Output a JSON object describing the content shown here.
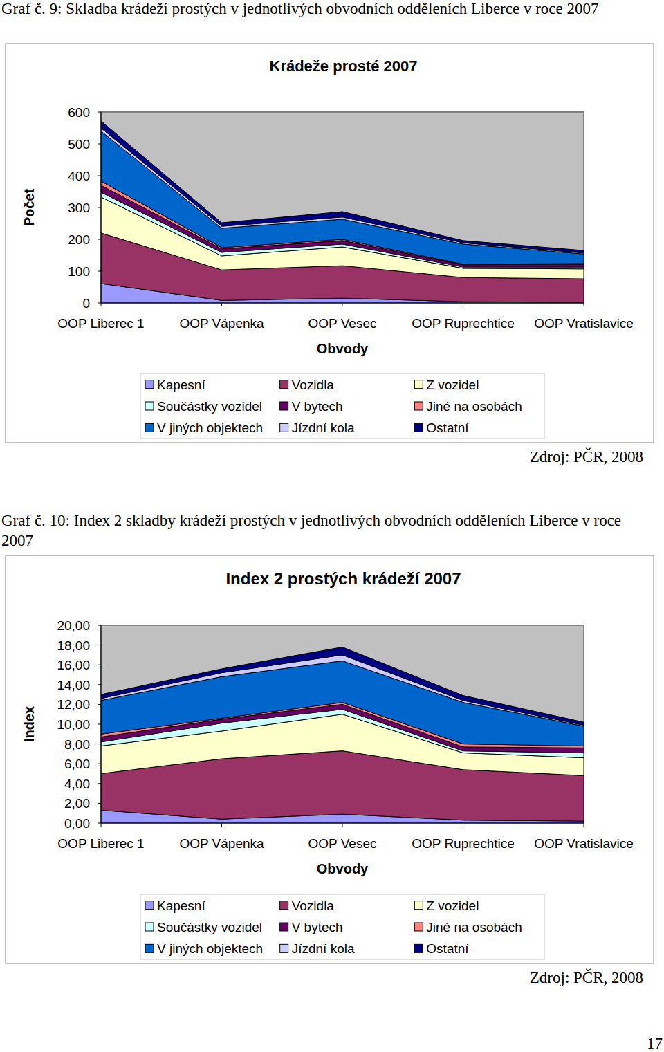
{
  "document": {
    "figures": [
      {
        "caption": "Graf č. 9: Skladba krádeží prostých  v jednotlivých obvodních odděleních  Liberce v roce 2007",
        "source": "Zdroj: PČR, 2008"
      },
      {
        "caption": "Graf č. 10: Index 2 skladby krádeží prostých  v jednotlivých obvodních odděleních  Liberce v roce 2007",
        "source": "Zdroj: PČR, 2008"
      }
    ],
    "page_number": "17"
  },
  "chart_data": [
    {
      "type": "area",
      "stacked": true,
      "grid": false,
      "legend": "bottom",
      "title": "Krádeže prosté 2007",
      "x_label": "Obvody",
      "y_label": "Počet",
      "categories": [
        "OOP Liberec 1",
        "OOP Vápenka",
        "OOP Vesec",
        "OOP Ruprechtice",
        "OOP Vratislavice"
      ],
      "ylim": [
        0,
        600
      ],
      "yticks": [
        0,
        100,
        200,
        300,
        400,
        500,
        600
      ],
      "series": [
        {
          "name": "Kapesní",
          "color": "#9999ff",
          "values": [
            61,
            8,
            15,
            4,
            2
          ]
        },
        {
          "name": "Vozidla",
          "color": "#993366",
          "values": [
            159,
            96,
            102,
            76,
            74
          ]
        },
        {
          "name": "Z vozidel",
          "color": "#ffffcc",
          "values": [
            113,
            44,
            59,
            29,
            31
          ]
        },
        {
          "name": "Součástky vozidel",
          "color": "#ccffff",
          "values": [
            15,
            11,
            9,
            4,
            6
          ]
        },
        {
          "name": "V bytech",
          "color": "#660066",
          "values": [
            22,
            11,
            11,
            7,
            9
          ]
        },
        {
          "name": "Jiné na osobách",
          "color": "#ff8080",
          "values": [
            13,
            4,
            4,
            2,
            2
          ]
        },
        {
          "name": "V jiných objektech",
          "color": "#0066cc",
          "values": [
            157,
            61,
            63,
            63,
            30
          ]
        },
        {
          "name": "Jízdní kola",
          "color": "#ccccff",
          "values": [
            10,
            6,
            7,
            4,
            3
          ]
        },
        {
          "name": "Ostatní",
          "color": "#000080",
          "values": [
            22,
            11,
            17,
            7,
            8
          ]
        }
      ]
    },
    {
      "type": "area",
      "stacked": true,
      "grid": false,
      "legend": "bottom",
      "title": "Index 2 prostých krádeží 2007",
      "x_label": "Obvody",
      "y_label": "Index",
      "categories": [
        "OOP Liberec 1",
        "OOP Vápenka",
        "OOP Vesec",
        "OOP Ruprechtice",
        "OOP Vratislavice"
      ],
      "ylim": [
        0,
        20
      ],
      "yticks": [
        {
          "value": 0,
          "label": "0,00"
        },
        {
          "value": 2,
          "label": "2,00"
        },
        {
          "value": 4,
          "label": "4,00"
        },
        {
          "value": 6,
          "label": "6,00"
        },
        {
          "value": 8,
          "label": "8,00"
        },
        {
          "value": 10,
          "label": "10,00"
        },
        {
          "value": 12,
          "label": "12,00"
        },
        {
          "value": 14,
          "label": "14,00"
        },
        {
          "value": 16,
          "label": "16,00"
        },
        {
          "value": 18,
          "label": "18,00"
        },
        {
          "value": 20,
          "label": "20,00"
        }
      ],
      "series": [
        {
          "name": "Kapesní",
          "color": "#9999ff",
          "values": [
            1.3,
            0.4,
            0.9,
            0.3,
            0.2
          ]
        },
        {
          "name": "Vozidla",
          "color": "#993366",
          "values": [
            3.7,
            6.1,
            6.4,
            5.1,
            4.6
          ]
        },
        {
          "name": "Z vozidel",
          "color": "#ffffcc",
          "values": [
            2.8,
            2.8,
            3.7,
            1.7,
            1.8
          ]
        },
        {
          "name": "Součástky vozidel",
          "color": "#ccffff",
          "values": [
            0.4,
            0.8,
            0.5,
            0.2,
            0.5
          ]
        },
        {
          "name": "V bytech",
          "color": "#660066",
          "values": [
            0.5,
            0.4,
            0.5,
            0.4,
            0.5
          ]
        },
        {
          "name": "Jiné na osobách",
          "color": "#ff8080",
          "values": [
            0.3,
            0.1,
            0.2,
            0.3,
            0.2
          ]
        },
        {
          "name": "V jiných objektech",
          "color": "#0066cc",
          "values": [
            3.4,
            4.2,
            4.2,
            4.2,
            2.0
          ]
        },
        {
          "name": "Jízdní kola",
          "color": "#ccccff",
          "values": [
            0.2,
            0.4,
            0.6,
            0.2,
            0.1
          ]
        },
        {
          "name": "Ostatní",
          "color": "#000080",
          "values": [
            0.4,
            0.4,
            0.8,
            0.5,
            0.3
          ]
        }
      ]
    }
  ]
}
